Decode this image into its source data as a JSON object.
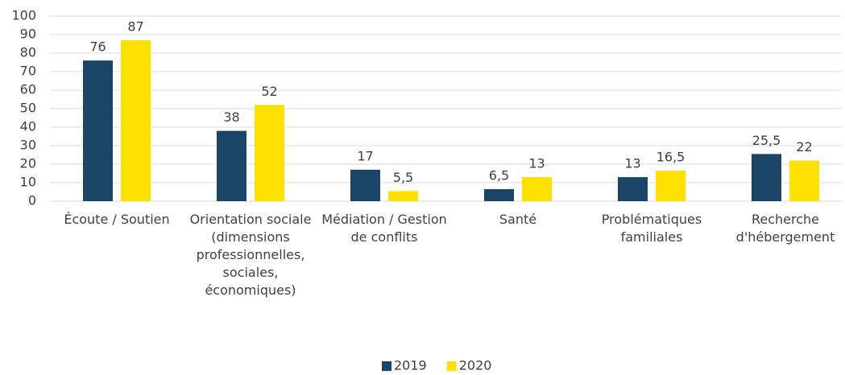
{
  "chart_data": {
    "type": "bar",
    "categories": [
      "Écoute / Soutien",
      "Orientation sociale (dimensions professionnelles, sociales, économiques)",
      "Médiation / Gestion de conflits",
      "Santé",
      "Problématiques familiales",
      "Recherche d'hébergement"
    ],
    "series": [
      {
        "name": "2019",
        "color": "#1b4567",
        "values": [
          76,
          38,
          17,
          6.5,
          13,
          25.5
        ],
        "value_labels": [
          "76",
          "38",
          "17",
          "6,5",
          "13",
          "25,5"
        ]
      },
      {
        "name": "2020",
        "color": "#ffe100",
        "values": [
          87,
          52,
          5.5,
          13,
          16.5,
          22
        ],
        "value_labels": [
          "87",
          "52",
          "5,5",
          "13",
          "16,5",
          "22"
        ]
      }
    ],
    "ylim": [
      0,
      100
    ],
    "yticks": [
      0,
      10,
      20,
      30,
      40,
      50,
      60,
      70,
      80,
      90,
      100
    ],
    "grid": true,
    "legend": "bottom"
  }
}
